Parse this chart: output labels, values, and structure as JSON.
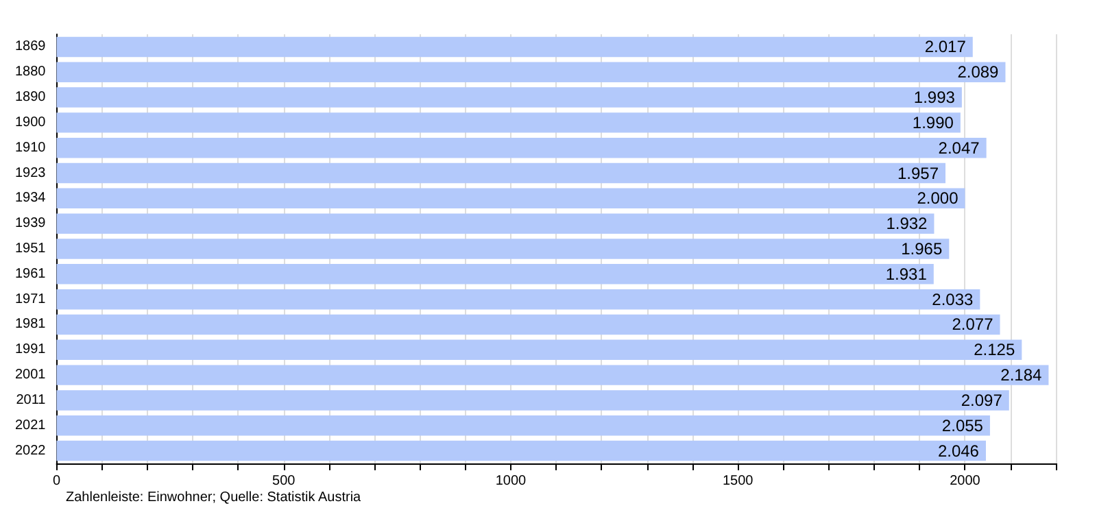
{
  "chart_data": {
    "type": "bar",
    "orientation": "horizontal",
    "categories": [
      "1869",
      "1880",
      "1890",
      "1900",
      "1910",
      "1923",
      "1934",
      "1939",
      "1951",
      "1961",
      "1971",
      "1981",
      "1991",
      "2001",
      "2011",
      "2021",
      "2022"
    ],
    "values": [
      2017,
      2089,
      1993,
      1990,
      2047,
      1957,
      2000,
      1932,
      1965,
      1931,
      2033,
      2077,
      2125,
      2184,
      2097,
      2055,
      2046
    ],
    "value_labels": [
      "2.017",
      "2.089",
      "1.993",
      "1.990",
      "2.047",
      "1.957",
      "2.000",
      "1.932",
      "1.965",
      "1.931",
      "2.033",
      "2.077",
      "2.125",
      "2.184",
      "2.097",
      "2.055",
      "2.046"
    ],
    "color": "#b3c9fb",
    "xlim": [
      0,
      2200
    ],
    "xticks": [
      0,
      {
        "value": 100,
        "label": null
      },
      {
        "value": 200,
        "label": null
      },
      {
        "value": 300,
        "label": null
      },
      {
        "value": 400,
        "label": null
      },
      500,
      {
        "value": 600,
        "label": null
      },
      {
        "value": 700,
        "label": null
      },
      {
        "value": 800,
        "label": null
      },
      {
        "value": 900,
        "label": null
      },
      1000,
      {
        "value": 1100,
        "label": null
      },
      {
        "value": 1200,
        "label": null
      },
      {
        "value": 1300,
        "label": null
      },
      {
        "value": 1400,
        "label": null
      },
      1500,
      {
        "value": 1600,
        "label": null
      },
      {
        "value": 1700,
        "label": null
      },
      {
        "value": 1800,
        "label": null
      },
      {
        "value": 1900,
        "label": null
      },
      2000,
      {
        "value": 2100,
        "label": null
      },
      {
        "value": 2200,
        "label": null
      }
    ],
    "grid": "x",
    "annotations": [
      "Zahlenleiste: Einwohner; Quelle: Statistik Austria"
    ]
  }
}
